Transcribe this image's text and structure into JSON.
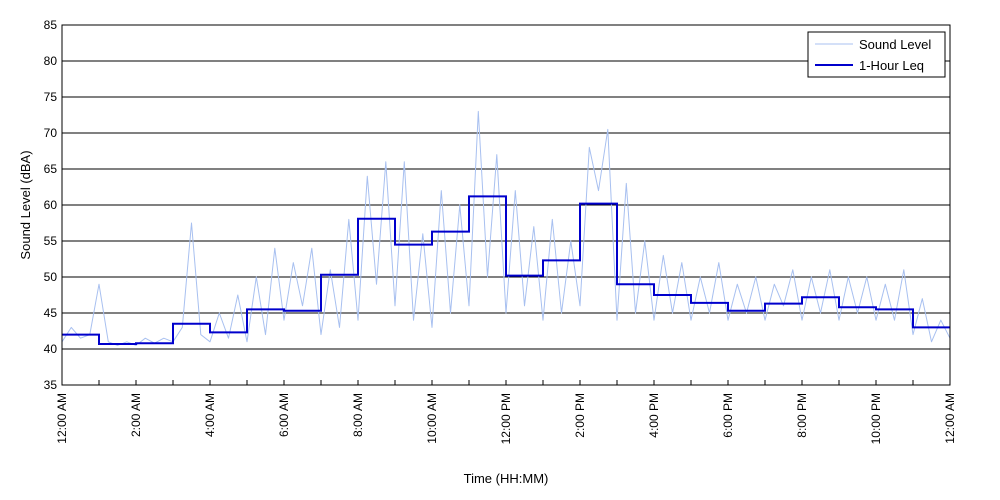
{
  "chart_data": {
    "type": "line",
    "title": "",
    "xlabel": "Time (HH:MM)",
    "ylabel": "Sound Level (dBA)",
    "xlim": [
      0,
      24
    ],
    "ylim": [
      35,
      85
    ],
    "y_ticks": [
      35,
      40,
      45,
      50,
      55,
      60,
      65,
      70,
      75,
      80,
      85
    ],
    "x_tick_hours": [
      0,
      2,
      4,
      6,
      8,
      10,
      12,
      14,
      16,
      18,
      20,
      22,
      24
    ],
    "x_tick_labels": [
      "12:00 AM",
      "2:00 AM",
      "4:00 AM",
      "6:00 AM",
      "8:00 AM",
      "10:00 AM",
      "12:00 PM",
      "2:00 PM",
      "4:00 PM",
      "6:00 PM",
      "8:00 PM",
      "10:00 PM",
      "12:00 AM"
    ],
    "grid": "horizontal",
    "legend_position": "top-right",
    "series": [
      {
        "name": "Sound Level",
        "color": "#a8c0f0",
        "x": [
          0,
          0.25,
          0.5,
          0.75,
          1,
          1.25,
          1.5,
          1.75,
          2,
          2.25,
          2.5,
          2.75,
          3,
          3.25,
          3.5,
          3.75,
          4,
          4.25,
          4.5,
          4.75,
          5,
          5.25,
          5.5,
          5.75,
          6,
          6.25,
          6.5,
          6.75,
          7,
          7.25,
          7.5,
          7.75,
          8,
          8.25,
          8.5,
          8.75,
          9,
          9.25,
          9.5,
          9.75,
          10,
          10.25,
          10.5,
          10.75,
          11,
          11.25,
          11.5,
          11.75,
          12,
          12.25,
          12.5,
          12.75,
          13,
          13.25,
          13.5,
          13.75,
          14,
          14.25,
          14.5,
          14.75,
          15,
          15.25,
          15.5,
          15.75,
          16,
          16.25,
          16.5,
          16.75,
          17,
          17.25,
          17.5,
          17.75,
          18,
          18.25,
          18.5,
          18.75,
          19,
          19.25,
          19.5,
          19.75,
          20,
          20.25,
          20.5,
          20.75,
          21,
          21.25,
          21.5,
          21.75,
          22,
          22.25,
          22.5,
          22.75,
          23,
          23.25,
          23.5,
          23.75,
          24
        ],
        "values": [
          41,
          43,
          41.5,
          42,
          49,
          41,
          40.5,
          41,
          40.5,
          41.5,
          40.8,
          41.5,
          41,
          43,
          57.5,
          42,
          41,
          45,
          41.5,
          47.5,
          41,
          50,
          42,
          54,
          44,
          52,
          46,
          54,
          42,
          51,
          43,
          58,
          44,
          64,
          49,
          66,
          46,
          66,
          44,
          56,
          43,
          62,
          45,
          60,
          46,
          73,
          50,
          67,
          45,
          62,
          46,
          57,
          44,
          58,
          45,
          55,
          46,
          68,
          62,
          70.5,
          44,
          63,
          45,
          55,
          44,
          53,
          45,
          52,
          44,
          50,
          45,
          52,
          44,
          49,
          45,
          50,
          44,
          49,
          46,
          51,
          44,
          50,
          45,
          51,
          44,
          50,
          45,
          50,
          44,
          49,
          44,
          51,
          42,
          47,
          41,
          44,
          41.5
        ]
      },
      {
        "name": "1-Hour Leq",
        "color": "#0000cc",
        "step": true,
        "x": [
          0,
          1,
          2,
          3,
          4,
          5,
          6,
          7,
          8,
          9,
          10,
          11,
          12,
          13,
          14,
          15,
          16,
          17,
          18,
          19,
          20,
          21,
          22,
          23
        ],
        "values": [
          42,
          40.7,
          40.8,
          43.5,
          42.3,
          45.5,
          45.3,
          50.3,
          58.1,
          54.5,
          56.3,
          61.2,
          50.2,
          52.3,
          60.2,
          49,
          47.5,
          46.4,
          45.3,
          46.3,
          47.2,
          45.8,
          45.5,
          43
        ]
      }
    ]
  }
}
